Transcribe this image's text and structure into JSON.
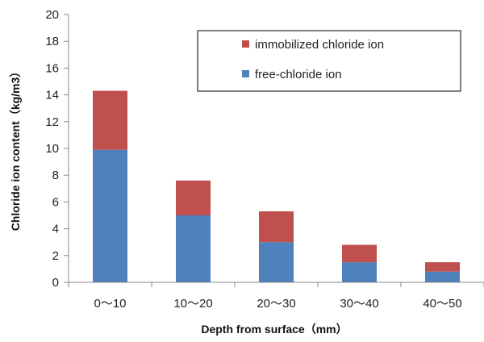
{
  "chart_data": {
    "type": "bar",
    "stacked": true,
    "categories": [
      "0～10",
      "10～20",
      "20～30",
      "30～40",
      "40～50"
    ],
    "series": [
      {
        "name": "free-chloride ion",
        "values": [
          9.9,
          5.0,
          3.0,
          1.5,
          0.8
        ],
        "color": "#4f81bd"
      },
      {
        "name": "immobilized chloride ion",
        "values": [
          4.4,
          2.6,
          2.3,
          1.3,
          0.7
        ],
        "color": "#c0504d"
      }
    ],
    "xlabel": "Depth from surface（mm）",
    "ylabel": "Chloride ion content（kg/m3）",
    "ylim": [
      0,
      20
    ],
    "yticks": [
      0,
      2,
      4,
      6,
      8,
      10,
      12,
      14,
      16,
      18,
      20
    ],
    "legend": [
      "immobilized chloride ion",
      "free-chloride ion"
    ],
    "legend_position": "top-right",
    "grid": false
  }
}
